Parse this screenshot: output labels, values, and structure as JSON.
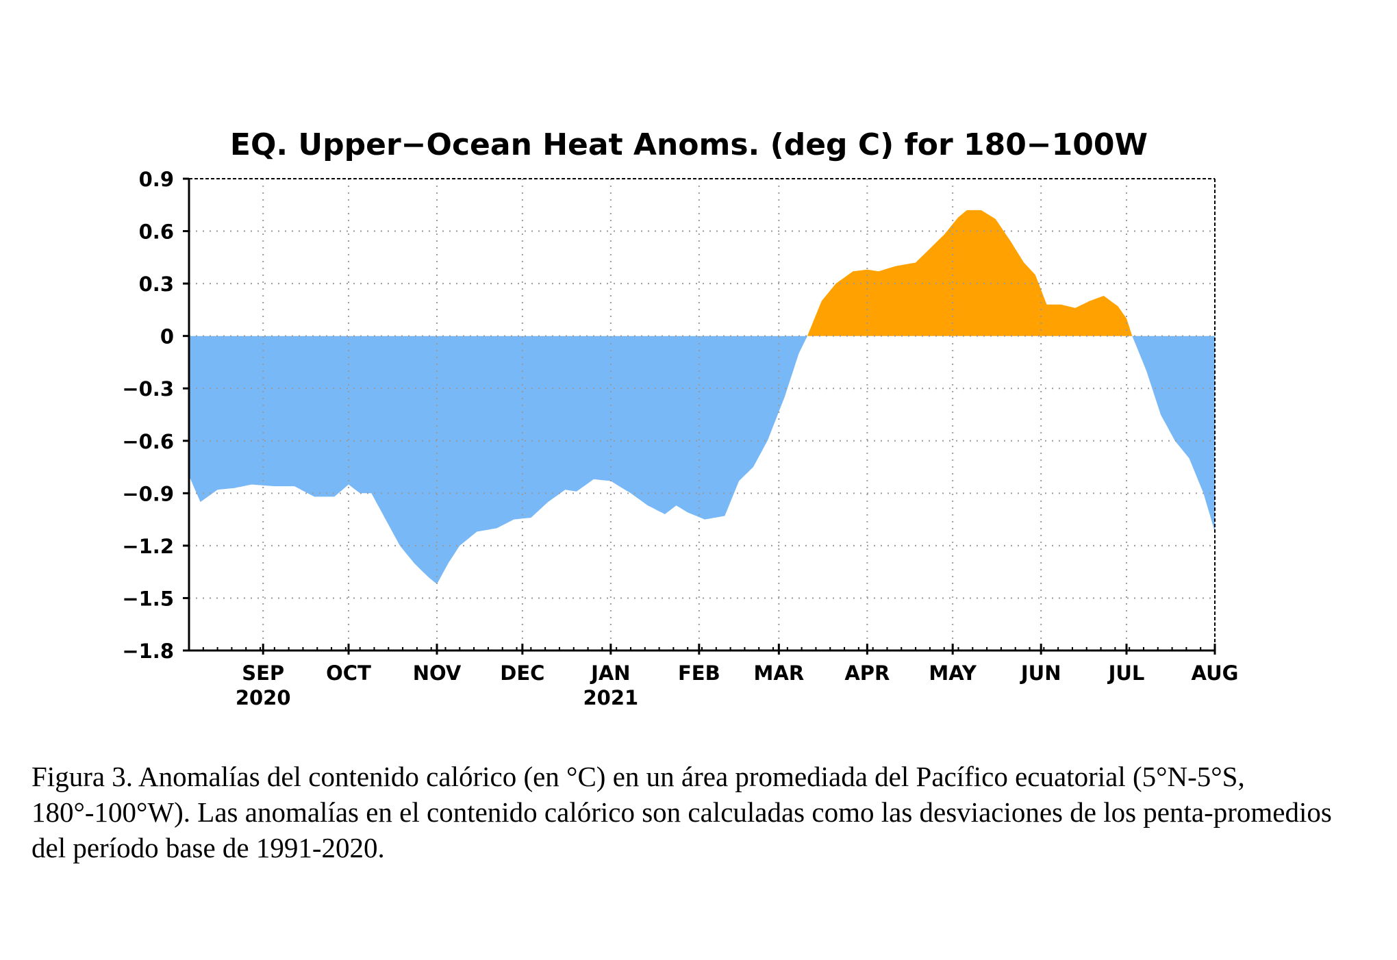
{
  "chart_data": {
    "type": "area",
    "title": "EQ. Upper−Ocean Heat Anoms. (deg C) for 180−100W",
    "xlabel": "",
    "ylabel": "",
    "ylim": [
      -1.8,
      0.9
    ],
    "y_ticks": [
      0.9,
      0.6,
      0.3,
      0,
      -0.3,
      -0.6,
      -0.9,
      -1.2,
      -1.5,
      -1.8
    ],
    "y_tick_labels": [
      "0.9",
      "0.6",
      "0.3",
      "0",
      "−0.3",
      "−0.6",
      "−0.9",
      "−1.2",
      "−1.5",
      "−1.8"
    ],
    "x_range": [
      "2020-08-06",
      "2021-08-01"
    ],
    "x_ticks": [
      {
        "date": "2020-09-01",
        "month": "SEP",
        "year": "2020"
      },
      {
        "date": "2020-10-01",
        "month": "OCT",
        "year": ""
      },
      {
        "date": "2020-11-01",
        "month": "NOV",
        "year": ""
      },
      {
        "date": "2020-12-01",
        "month": "DEC",
        "year": ""
      },
      {
        "date": "2021-01-01",
        "month": "JAN",
        "year": "2021"
      },
      {
        "date": "2021-02-01",
        "month": "FEB",
        "year": ""
      },
      {
        "date": "2021-03-01",
        "month": "MAR",
        "year": ""
      },
      {
        "date": "2021-04-01",
        "month": "APR",
        "year": ""
      },
      {
        "date": "2021-05-01",
        "month": "MAY",
        "year": ""
      },
      {
        "date": "2021-06-01",
        "month": "JUN",
        "year": ""
      },
      {
        "date": "2021-07-01",
        "month": "JUL",
        "year": ""
      },
      {
        "date": "2021-08-01",
        "month": "AUG",
        "year": ""
      }
    ],
    "grid": true,
    "colors": {
      "positive": "#ffa100",
      "negative": "#79b8f6",
      "axis": "#000000",
      "grid": "#9a9a9a"
    },
    "series": [
      {
        "values": [
          {
            "x": "2020-08-06",
            "y": -0.8
          },
          {
            "x": "2020-08-10",
            "y": -0.95
          },
          {
            "x": "2020-08-16",
            "y": -0.88
          },
          {
            "x": "2020-08-22",
            "y": -0.87
          },
          {
            "x": "2020-08-28",
            "y": -0.85
          },
          {
            "x": "2020-09-05",
            "y": -0.86
          },
          {
            "x": "2020-09-12",
            "y": -0.86
          },
          {
            "x": "2020-09-19",
            "y": -0.92
          },
          {
            "x": "2020-09-26",
            "y": -0.92
          },
          {
            "x": "2020-10-01",
            "y": -0.85
          },
          {
            "x": "2020-10-05",
            "y": -0.9
          },
          {
            "x": "2020-10-09",
            "y": -0.9
          },
          {
            "x": "2020-10-14",
            "y": -1.05
          },
          {
            "x": "2020-10-19",
            "y": -1.2
          },
          {
            "x": "2020-10-24",
            "y": -1.3
          },
          {
            "x": "2020-10-29",
            "y": -1.38
          },
          {
            "x": "2020-11-01",
            "y": -1.42
          },
          {
            "x": "2020-11-05",
            "y": -1.3
          },
          {
            "x": "2020-11-09",
            "y": -1.2
          },
          {
            "x": "2020-11-15",
            "y": -1.12
          },
          {
            "x": "2020-11-22",
            "y": -1.1
          },
          {
            "x": "2020-11-28",
            "y": -1.05
          },
          {
            "x": "2020-12-04",
            "y": -1.04
          },
          {
            "x": "2020-12-10",
            "y": -0.95
          },
          {
            "x": "2020-12-16",
            "y": -0.88
          },
          {
            "x": "2020-12-20",
            "y": -0.89
          },
          {
            "x": "2020-12-26",
            "y": -0.82
          },
          {
            "x": "2021-01-01",
            "y": -0.83
          },
          {
            "x": "2021-01-08",
            "y": -0.9
          },
          {
            "x": "2021-01-14",
            "y": -0.97
          },
          {
            "x": "2021-01-20",
            "y": -1.02
          },
          {
            "x": "2021-01-24",
            "y": -0.97
          },
          {
            "x": "2021-01-28",
            "y": -1.01
          },
          {
            "x": "2021-02-03",
            "y": -1.05
          },
          {
            "x": "2021-02-10",
            "y": -1.03
          },
          {
            "x": "2021-02-15",
            "y": -0.83
          },
          {
            "x": "2021-02-20",
            "y": -0.75
          },
          {
            "x": "2021-02-25",
            "y": -0.6
          },
          {
            "x": "2021-03-03",
            "y": -0.35
          },
          {
            "x": "2021-03-08",
            "y": -0.1
          },
          {
            "x": "2021-03-11",
            "y": 0.0
          },
          {
            "x": "2021-03-16",
            "y": 0.2
          },
          {
            "x": "2021-03-21",
            "y": 0.3
          },
          {
            "x": "2021-03-27",
            "y": 0.37
          },
          {
            "x": "2021-04-01",
            "y": 0.38
          },
          {
            "x": "2021-04-05",
            "y": 0.37
          },
          {
            "x": "2021-04-11",
            "y": 0.4
          },
          {
            "x": "2021-04-18",
            "y": 0.42
          },
          {
            "x": "2021-04-23",
            "y": 0.5
          },
          {
            "x": "2021-04-28",
            "y": 0.58
          },
          {
            "x": "2021-05-03",
            "y": 0.68
          },
          {
            "x": "2021-05-06",
            "y": 0.72
          },
          {
            "x": "2021-05-11",
            "y": 0.72
          },
          {
            "x": "2021-05-16",
            "y": 0.67
          },
          {
            "x": "2021-05-21",
            "y": 0.55
          },
          {
            "x": "2021-05-26",
            "y": 0.42
          },
          {
            "x": "2021-05-30",
            "y": 0.35
          },
          {
            "x": "2021-06-03",
            "y": 0.18
          },
          {
            "x": "2021-06-08",
            "y": 0.18
          },
          {
            "x": "2021-06-13",
            "y": 0.16
          },
          {
            "x": "2021-06-18",
            "y": 0.2
          },
          {
            "x": "2021-06-23",
            "y": 0.23
          },
          {
            "x": "2021-06-28",
            "y": 0.17
          },
          {
            "x": "2021-07-01",
            "y": 0.1
          },
          {
            "x": "2021-07-03",
            "y": 0.0
          },
          {
            "x": "2021-07-08",
            "y": -0.2
          },
          {
            "x": "2021-07-13",
            "y": -0.45
          },
          {
            "x": "2021-07-18",
            "y": -0.6
          },
          {
            "x": "2021-07-23",
            "y": -0.7
          },
          {
            "x": "2021-07-28",
            "y": -0.9
          },
          {
            "x": "2021-08-01",
            "y": -1.12
          }
        ]
      }
    ]
  },
  "caption": "Figura 3. Anomalías del contenido calórico (en °C) en un área promediada del Pacífico ecuatorial (5°N-5°S, 180°-100°W). Las anomalías en el contenido calórico son calculadas como las desviaciones de los penta-promedios del período base de 1991-2020."
}
